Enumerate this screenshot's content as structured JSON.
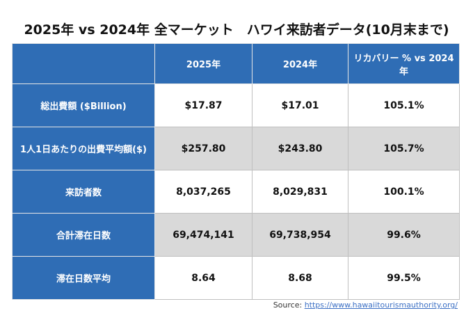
{
  "header": {
    "title": "2025年 vs 2024年 全マーケット　ハワイ来訪者データ(10月末まで)"
  },
  "table": {
    "columns": [
      "2025年",
      "2024年",
      "リカバリー % vs 2024年"
    ],
    "rows": [
      [
        "総出費額 ($Billion)",
        "$17.87",
        "$17.01",
        "105.1%"
      ],
      [
        "1人1日あたりの出費平均額($)",
        "$257.80",
        "$243.80",
        "105.7%"
      ],
      [
        "来訪者数",
        "8,037,265",
        "8,029,831",
        "100.1%"
      ],
      [
        "合計滞在日数",
        "69,474,141",
        "69,738,954",
        "99.6%"
      ],
      [
        "滞在日数平均",
        "8.64",
        "8.68",
        "99.5%"
      ]
    ]
  },
  "source": {
    "label": "Source:",
    "url": "https://www.hawaiitourismauthority.org/"
  }
}
